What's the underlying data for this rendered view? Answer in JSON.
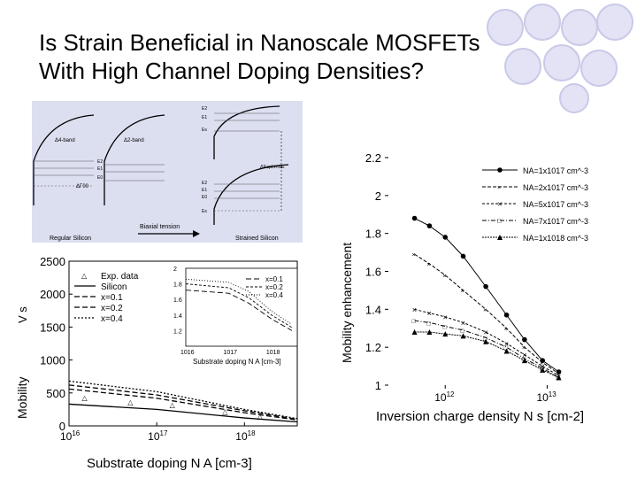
{
  "slide": {
    "title": "Is Strain Beneficial in Nanoscale MOSFETs\nWith High Channel Doping Densities?",
    "accent_color": "#c9c9e8"
  },
  "band_figure": {
    "labels": {
      "delta4": "Δ4-band",
      "delta2": "Δ2-band",
      "biaxial": "Biaxial tension",
      "regular": "Regular Silicon",
      "strained": "Strained Silicon",
      "split": "ΔEsplit+ΔE",
      "dgamma": "ΔΓ00"
    },
    "levels_left": [
      "E2",
      "E1",
      "E0",
      "F0"
    ],
    "levels_mid": [
      "E2",
      "E1",
      "E0"
    ],
    "levels_right_top": [
      "E2",
      "E1",
      "Es"
    ],
    "levels_right_bottom": [
      "E2",
      "E1",
      "E0",
      "Es"
    ]
  },
  "chart_data": [
    {
      "type": "line",
      "title": "",
      "xlabel": "Substrate doping N_A [cm^-3]",
      "ylabel": "Mobility",
      "ylabel_fragment": "V s",
      "x_scale": "log",
      "xlim": [
        1e+16,
        4e+18
      ],
      "ylim": [
        0,
        2500
      ],
      "x_ticks": [
        "10^16",
        "10^17",
        "10^18"
      ],
      "y_ticks": [
        "0",
        "500",
        "1000",
        "1500",
        "2000",
        "2500"
      ],
      "legend": [
        "Exp. data",
        "Silicon",
        "x=0.1",
        "x=0.2",
        "x=0.4"
      ],
      "series": [
        {
          "name": "Exp. data",
          "style": "marker",
          "x": [
            1.5e+16,
            5e+16,
            1.5e+17,
            6e+17,
            1.5e+18
          ],
          "y": [
            430,
            360,
            320,
            220,
            150
          ]
        },
        {
          "name": "Silicon",
          "style": "solid",
          "x": [
            1e+16,
            1e+17,
            1e+18,
            4e+18
          ],
          "y": [
            330,
            250,
            120,
            60
          ]
        },
        {
          "name": "x=0.1",
          "style": "dashed",
          "x": [
            1e+16,
            1e+17,
            1e+18,
            4e+18
          ],
          "y": [
            560,
            420,
            200,
            90
          ]
        },
        {
          "name": "x=0.2",
          "style": "dashed",
          "x": [
            1e+16,
            1e+17,
            1e+18,
            4e+18
          ],
          "y": [
            620,
            470,
            230,
            100
          ]
        },
        {
          "name": "x=0.4",
          "style": "dotted",
          "x": [
            1e+16,
            1e+17,
            1e+18,
            4e+18
          ],
          "y": [
            680,
            520,
            250,
            110
          ]
        }
      ],
      "inset": {
        "xlabel": "Substrate doping N_A [cm^-3]",
        "x_ticks": [
          "10^16",
          "10^17",
          "10^18"
        ],
        "y_ticks": [
          "1.2",
          "1.4",
          "1.6",
          "1.8",
          "2"
        ],
        "legend": [
          "x=0.1",
          "x=0.2",
          "x=0.4"
        ],
        "ylim": [
          1.0,
          2.0
        ],
        "series": [
          {
            "name": "x=0.1",
            "x": [
              1e+16,
              1e+17,
              3e+17,
              1e+18,
              3e+18
            ],
            "y": [
              1.72,
              1.68,
              1.55,
              1.35,
              1.2
            ]
          },
          {
            "name": "x=0.2",
            "x": [
              1e+16,
              1e+17,
              3e+17,
              1e+18,
              3e+18
            ],
            "y": [
              1.8,
              1.75,
              1.62,
              1.4,
              1.24
            ]
          },
          {
            "name": "x=0.4",
            "x": [
              1e+16,
              1e+17,
              3e+17,
              1e+18,
              3e+18
            ],
            "y": [
              1.86,
              1.82,
              1.7,
              1.45,
              1.28
            ]
          }
        ]
      }
    },
    {
      "type": "line",
      "title": "",
      "xlabel": "Inversion charge density N_s [cm^-2]",
      "ylabel": "Mobility enhancement",
      "x_scale": "log",
      "xlim": [
        300000000000.0,
        17000000000000.0
      ],
      "ylim": [
        1,
        2.2
      ],
      "x_ticks": [
        "10^12",
        "10^13"
      ],
      "y_ticks": [
        "1",
        "1.2",
        "1.4",
        "1.6",
        "1.8",
        "2",
        "2.2"
      ],
      "legend": [
        "NA=1x10^17 cm^-3",
        "NA=2x10^17 cm^-3",
        "NA=5x10^17 cm^-3",
        "NA=7x10^17 cm^-3",
        "NA=1x10^18 cm^-3"
      ],
      "series": [
        {
          "name": "NA=1x10^17 cm^-3",
          "x": [
            500000000000.0,
            700000000000.0,
            1000000000000.0,
            1500000000000.0,
            2500000000000.0,
            4000000000000.0,
            6000000000000.0,
            9000000000000.0,
            13000000000000.0
          ],
          "y": [
            1.88,
            1.84,
            1.78,
            1.68,
            1.52,
            1.37,
            1.24,
            1.13,
            1.07
          ]
        },
        {
          "name": "NA=2x10^17 cm^-3",
          "x": [
            500000000000.0,
            700000000000.0,
            1000000000000.0,
            1500000000000.0,
            2500000000000.0,
            4000000000000.0,
            6000000000000.0,
            9000000000000.0,
            13000000000000.0
          ],
          "y": [
            1.69,
            1.64,
            1.58,
            1.5,
            1.4,
            1.3,
            1.2,
            1.12,
            1.06
          ]
        },
        {
          "name": "NA=5x10^17 cm^-3",
          "x": [
            500000000000.0,
            700000000000.0,
            1000000000000.0,
            1500000000000.0,
            2500000000000.0,
            4000000000000.0,
            6000000000000.0,
            9000000000000.0,
            13000000000000.0
          ],
          "y": [
            1.4,
            1.38,
            1.36,
            1.33,
            1.28,
            1.22,
            1.16,
            1.1,
            1.05
          ]
        },
        {
          "name": "NA=7x10^17 cm^-3",
          "x": [
            500000000000.0,
            700000000000.0,
            1000000000000.0,
            1500000000000.0,
            2500000000000.0,
            4000000000000.0,
            6000000000000.0,
            9000000000000.0,
            13000000000000.0
          ],
          "y": [
            1.34,
            1.33,
            1.31,
            1.29,
            1.25,
            1.2,
            1.14,
            1.09,
            1.04
          ]
        },
        {
          "name": "NA=1x10^18 cm^-3",
          "x": [
            500000000000.0,
            700000000000.0,
            1000000000000.0,
            1500000000000.0,
            2500000000000.0,
            4000000000000.0,
            6000000000000.0,
            9000000000000.0,
            13000000000000.0
          ],
          "y": [
            1.28,
            1.28,
            1.27,
            1.26,
            1.23,
            1.18,
            1.13,
            1.08,
            1.04
          ]
        }
      ]
    }
  ]
}
